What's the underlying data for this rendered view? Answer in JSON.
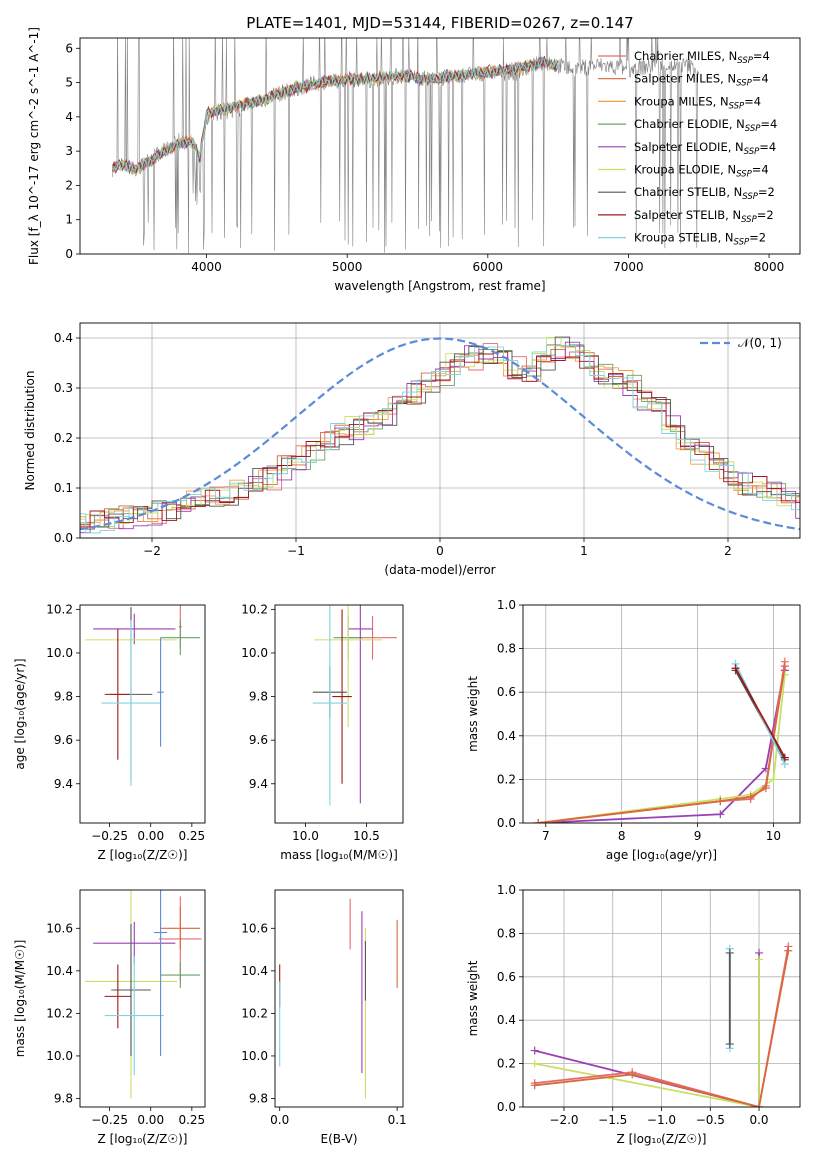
{
  "figure": {
    "title": "PLATE=1401, MJD=53144, FIBERID=0267, z=0.147"
  },
  "series_colors": {
    "Chabrier MILES": "#e46c70",
    "Salpeter MILES": "#d9683a",
    "Kroupa MILES": "#f0a040",
    "Chabrier ELODIE": "#6aa06a",
    "Salpeter ELODIE": "#9a3fb5",
    "Kroupa ELODIE": "#c8e064",
    "Chabrier STELIB": "#555555",
    "Salpeter STELIB": "#a01818",
    "Kroupa STELIB": "#80d4e0"
  },
  "chart_data": [
    {
      "id": "spectrum",
      "type": "line",
      "xlabel": "wavelength [Angstrom, rest frame]",
      "ylabel": "Flux [f_λ 10^-17 erg cm^-2 s^-1 A^-1]",
      "xlim": [
        3100,
        8220
      ],
      "ylim": [
        0,
        6.3
      ],
      "xticks": [
        4000,
        5000,
        6000,
        7000,
        8000
      ],
      "yticks": [
        0,
        1,
        2,
        3,
        4,
        5,
        6
      ],
      "legend": {
        "placement": "upper-right",
        "entries": [
          {
            "label": "Chabrier MILES, N_SSP=4",
            "text": "Chabrier MILES, N",
            "sub": "SSP",
            "tail": "=4",
            "color": "#e46c70"
          },
          {
            "label": "Salpeter MILES, N_SSP=4",
            "text": "Salpeter MILES, N",
            "sub": "SSP",
            "tail": "=4",
            "color": "#d9683a"
          },
          {
            "label": "Kroupa MILES, N_SSP=4",
            "text": "Kroupa MILES, N",
            "sub": "SSP",
            "tail": "=4",
            "color": "#f0a040"
          },
          {
            "label": "Chabrier ELODIE, N_SSP=4",
            "text": "Chabrier ELODIE, N",
            "sub": "SSP",
            "tail": "=4",
            "color": "#6aa06a"
          },
          {
            "label": "Salpeter ELODIE, N_SSP=4",
            "text": "Salpeter ELODIE, N",
            "sub": "SSP",
            "tail": "=4",
            "color": "#9a3fb5"
          },
          {
            "label": "Kroupa ELODIE, N_SSP=4",
            "text": "Kroupa ELODIE, N",
            "sub": "SSP",
            "tail": "=4",
            "color": "#c8e064"
          },
          {
            "label": "Chabrier STELIB, N_SSP=2",
            "text": "Chabrier STELIB, N",
            "sub": "SSP",
            "tail": "=2",
            "color": "#555555"
          },
          {
            "label": "Salpeter STELIB, N_SSP=2",
            "text": "Salpeter STELIB, N",
            "sub": "SSP",
            "tail": "=2",
            "color": "#a01818"
          },
          {
            "label": "Kroupa STELIB, N_SSP=2",
            "text": "Kroupa STELIB, N",
            "sub": "SSP",
            "tail": "=2",
            "color": "#80d4e0"
          }
        ]
      },
      "data_color": "#808080",
      "data_x": [
        3330,
        3400,
        3500,
        3600,
        3700,
        3800,
        3900,
        3950,
        4000,
        4200,
        4400,
        4600,
        4800,
        5000,
        5200,
        5400,
        5600,
        5800,
        6000,
        6200,
        6400,
        6600,
        6800,
        7000,
        7200,
        7400,
        7500
      ],
      "data_y": [
        2.5,
        2.6,
        2.4,
        2.8,
        3.0,
        3.3,
        3.2,
        2.6,
        4.0,
        4.2,
        4.5,
        4.8,
        5.0,
        5.1,
        5.1,
        5.2,
        5.1,
        5.2,
        5.3,
        5.3,
        5.6,
        5.4,
        5.5,
        5.4,
        5.5,
        5.5,
        5.4
      ],
      "model_color": "#80d4e0",
      "model_x": [
        3330,
        3400,
        3500,
        3600,
        3700,
        3800,
        3900,
        3950,
        4000,
        4200,
        4400,
        4600,
        4800,
        5000,
        5200,
        5400,
        5600,
        5800,
        6000,
        6200,
        6400,
        6500
      ],
      "model_y": [
        2.5,
        2.6,
        2.5,
        2.7,
        3.0,
        3.2,
        3.3,
        2.8,
        4.1,
        4.3,
        4.5,
        4.8,
        5.0,
        5.1,
        5.1,
        5.2,
        5.1,
        5.2,
        5.3,
        5.4,
        5.6,
        5.5
      ]
    },
    {
      "id": "residuals",
      "type": "line",
      "xlabel": "(data-model)/error",
      "ylabel": "Normed distribution",
      "xlim": [
        -2.5,
        2.5
      ],
      "ylim": [
        0,
        0.43
      ],
      "xticks": [
        -2,
        -1,
        0,
        1,
        2
      ],
      "yticks": [
        0.0,
        0.1,
        0.2,
        0.3,
        0.4
      ],
      "grid": true,
      "legend": {
        "placement": "upper-right",
        "entries": [
          {
            "label": "𝒩(0, 1)",
            "color": "#5b8bd9",
            "style": "dashed"
          }
        ]
      },
      "hist_edges_start": -2.5,
      "hist_bin_width": 0.1,
      "hist_values": [
        0.025,
        0.03,
        0.035,
        0.04,
        0.045,
        0.05,
        0.05,
        0.06,
        0.07,
        0.085,
        0.09,
        0.1,
        0.115,
        0.12,
        0.14,
        0.16,
        0.17,
        0.19,
        0.21,
        0.22,
        0.23,
        0.25,
        0.27,
        0.29,
        0.31,
        0.33,
        0.35,
        0.36,
        0.37,
        0.36,
        0.34,
        0.33,
        0.36,
        0.38,
        0.37,
        0.36,
        0.33,
        0.32,
        0.31,
        0.28,
        0.26,
        0.22,
        0.2,
        0.17,
        0.15,
        0.13,
        0.11,
        0.1,
        0.09,
        0.07,
        0.06,
        0.05,
        0.045,
        0.04,
        0.035,
        0.03,
        0.025
      ],
      "hist_colors": [
        "#e46c70",
        "#d9683a",
        "#f0a040",
        "#6aa06a",
        "#9a3fb5",
        "#c8e064",
        "#555555",
        "#a01818",
        "#80d4e0"
      ]
    },
    {
      "id": "age-Z",
      "type": "scatter",
      "xlabel": "Z [log₁₀(Z/Z☉)]",
      "ylabel": "age  [log₁₀(age/yr)]",
      "xlim": [
        -0.43,
        0.33
      ],
      "ylim": [
        9.22,
        10.22
      ],
      "xticks": [
        -0.25,
        0.0,
        0.25
      ],
      "xticklabels": [
        "−0.25",
        "0.00",
        "0.25"
      ],
      "yticks": [
        9.4,
        9.6,
        9.8,
        10.0,
        10.2
      ],
      "points": [
        {
          "x": 0.18,
          "y": 10.12,
          "xerr": 0.01,
          "yerr": 0.1,
          "color": "#e46c70"
        },
        {
          "x": 0.18,
          "y": 10.07,
          "xerr": 0.12,
          "yerr": 0.08,
          "color": "#6aa06a"
        },
        {
          "x": -0.1,
          "y": 10.11,
          "xerr": 0.25,
          "yerr": 0.07,
          "color": "#9a3fb5"
        },
        {
          "x": -0.12,
          "y": 10.06,
          "xerr": 0.28,
          "yerr": 0.06,
          "color": "#c8e064"
        },
        {
          "x": -0.12,
          "y": 9.81,
          "xerr": 0.13,
          "yerr": 0.4,
          "color": "#555555"
        },
        {
          "x": -0.2,
          "y": 9.81,
          "xerr": 0.08,
          "yerr": 0.3,
          "color": "#a01818"
        },
        {
          "x": -0.12,
          "y": 9.77,
          "xerr": 0.18,
          "yerr": 0.38,
          "color": "#80d4e0"
        },
        {
          "x": 0.06,
          "y": 9.82,
          "xerr": 0.02,
          "yerr": 0.25,
          "color": "#5b8bd9"
        }
      ]
    },
    {
      "id": "age-mass",
      "type": "scatter",
      "xlabel": "mass [log₁₀(M/M☉)]",
      "xlim": [
        9.75,
        10.8
      ],
      "ylim": [
        9.22,
        10.22
      ],
      "xticks": [
        10.0,
        10.5
      ],
      "yticks": [
        9.4,
        9.6,
        9.8,
        10.0,
        10.2
      ],
      "points": [
        {
          "x": 10.55,
          "y": 10.07,
          "xerr": 0.2,
          "yerr": 0.1,
          "color": "#e46c70"
        },
        {
          "x": 10.35,
          "y": 10.07,
          "xerr": 0.12,
          "yerr": 0.1,
          "color": "#6aa06a"
        },
        {
          "x": 10.45,
          "y": 10.11,
          "xerr": 0.1,
          "yerr": 0.8,
          "color": "#9a3fb5"
        },
        {
          "x": 10.35,
          "y": 10.06,
          "xerr": 0.28,
          "yerr": 0.4,
          "color": "#c8e064"
        },
        {
          "x": 10.2,
          "y": 9.82,
          "xerr": 0.14,
          "yerr": 0.12,
          "color": "#555555"
        },
        {
          "x": 10.3,
          "y": 9.8,
          "xerr": 0.08,
          "yerr": 0.4,
          "color": "#a01818"
        },
        {
          "x": 10.2,
          "y": 9.77,
          "xerr": 0.14,
          "yerr": 0.47,
          "color": "#80d4e0"
        }
      ]
    },
    {
      "id": "weight-age",
      "type": "line",
      "xlabel": "age  [log₁₀(age/yr)]",
      "ylabel": "mass weight",
      "xlim": [
        6.7,
        10.35
      ],
      "ylim": [
        0,
        1.0
      ],
      "xticks": [
        7,
        8,
        9,
        10
      ],
      "yticks": [
        0.0,
        0.2,
        0.4,
        0.6,
        0.8,
        1.0
      ],
      "grid": true,
      "series": [
        {
          "color": "#9a3fb5",
          "x": [
            6.9,
            9.3,
            9.9,
            10.15,
            10.15
          ],
          "y": [
            0.0,
            0.04,
            0.25,
            0.72,
            0.7
          ]
        },
        {
          "color": "#c8e064",
          "x": [
            6.9,
            9.3,
            9.7,
            10.0,
            10.15
          ],
          "y": [
            0.0,
            0.11,
            0.13,
            0.2,
            0.68
          ]
        },
        {
          "color": "#e46c70",
          "x": [
            6.9,
            9.3,
            9.7,
            9.9,
            10.15
          ],
          "y": [
            0.0,
            0.1,
            0.11,
            0.17,
            0.74
          ]
        },
        {
          "color": "#d9683a",
          "x": [
            6.9,
            9.3,
            9.7,
            9.9,
            10.15
          ],
          "y": [
            0.0,
            0.1,
            0.12,
            0.16,
            0.72
          ]
        },
        {
          "color": "#555555",
          "x": [
            9.5,
            10.15
          ],
          "y": [
            0.7,
            0.29
          ]
        },
        {
          "color": "#80d4e0",
          "x": [
            9.5,
            10.15
          ],
          "y": [
            0.73,
            0.27
          ]
        },
        {
          "color": "#a01818",
          "x": [
            9.5,
            10.15
          ],
          "y": [
            0.71,
            0.3
          ]
        }
      ]
    },
    {
      "id": "mass-Z",
      "type": "scatter",
      "xlabel": "Z [log₁₀(Z/Z☉)]",
      "ylabel": "mass [log₁₀(M/M☉)]",
      "xlim": [
        -0.43,
        0.33
      ],
      "ylim": [
        9.76,
        10.78
      ],
      "xticks": [
        -0.25,
        0.0,
        0.25
      ],
      "xticklabels": [
        "−0.25",
        "0.00",
        "0.25"
      ],
      "yticks": [
        9.8,
        10.0,
        10.2,
        10.4,
        10.6
      ],
      "points": [
        {
          "x": 0.18,
          "y": 10.55,
          "xerr": 0.13,
          "yerr": 0.2,
          "color": "#e46c70"
        },
        {
          "x": 0.18,
          "y": 10.6,
          "xerr": 0.12,
          "yerr": 0.1,
          "color": "#d9683a"
        },
        {
          "x": 0.18,
          "y": 10.38,
          "xerr": 0.12,
          "yerr": 0.06,
          "color": "#6aa06a"
        },
        {
          "x": -0.1,
          "y": 10.53,
          "xerr": 0.25,
          "yerr": 0.1,
          "color": "#9a3fb5"
        },
        {
          "x": -0.12,
          "y": 10.35,
          "xerr": 0.28,
          "yerr": 0.55,
          "color": "#c8e064"
        },
        {
          "x": -0.12,
          "y": 10.31,
          "xerr": 0.12,
          "yerr": 0.31,
          "color": "#555555"
        },
        {
          "x": -0.2,
          "y": 10.28,
          "xerr": 0.08,
          "yerr": 0.15,
          "color": "#a01818"
        },
        {
          "x": -0.1,
          "y": 10.19,
          "xerr": 0.18,
          "yerr": 0.28,
          "color": "#80d4e0"
        },
        {
          "x": 0.06,
          "y": 10.58,
          "xerr": 0.04,
          "yerr": 0.58,
          "color": "#5b8bd9"
        }
      ]
    },
    {
      "id": "mass-EBV",
      "type": "scatter",
      "xlabel": "E(B-V)",
      "xlim": [
        -0.004,
        0.105
      ],
      "ylim": [
        9.76,
        10.78
      ],
      "xticks": [
        0.0,
        0.1
      ],
      "xticklabels": [
        "0.0",
        "0.1"
      ],
      "yticks": [
        9.8,
        10.0,
        10.2,
        10.4,
        10.6
      ],
      "points": [
        {
          "x": 0.0,
          "y": 10.33,
          "xerr": 0,
          "yerr": 0.1,
          "color": "#a01818"
        },
        {
          "x": 0.0,
          "y": 10.15,
          "xerr": 0,
          "yerr": 0.2,
          "color": "#80d4e0"
        },
        {
          "x": 0.06,
          "y": 10.62,
          "xerr": 0,
          "yerr": 0.12,
          "color": "#e46c70"
        },
        {
          "x": 0.07,
          "y": 10.3,
          "xerr": 0,
          "yerr": 0.38,
          "color": "#9a3fb5"
        },
        {
          "x": 0.073,
          "y": 10.2,
          "xerr": 0,
          "yerr": 0.4,
          "color": "#c8e064"
        },
        {
          "x": 0.073,
          "y": 10.4,
          "xerr": 0,
          "yerr": 0.14,
          "color": "#555555"
        },
        {
          "x": 0.1,
          "y": 10.48,
          "xerr": 0,
          "yerr": 0.16,
          "color": "#d9683a"
        }
      ]
    },
    {
      "id": "weight-Z",
      "type": "line",
      "xlabel": "Z [log₁₀(Z/Z☉)]",
      "ylabel": "mass weight",
      "xlim": [
        -2.42,
        0.42
      ],
      "ylim": [
        0,
        1.0
      ],
      "xticks": [
        -2.0,
        -1.5,
        -1.0,
        -0.5,
        0.0
      ],
      "xticklabels": [
        "−2.0",
        "−1.5",
        "−1.0",
        "−0.5",
        "0.0"
      ],
      "yticks": [
        0.0,
        0.2,
        0.4,
        0.6,
        0.8,
        1.0
      ],
      "grid": true,
      "series": [
        {
          "color": "#9a3fb5",
          "x": [
            -2.3,
            0.0,
            0.0
          ],
          "y": [
            0.26,
            0.0,
            0.71
          ]
        },
        {
          "color": "#c8e064",
          "x": [
            -2.3,
            0.0,
            0.0
          ],
          "y": [
            0.2,
            0.0,
            0.68
          ]
        },
        {
          "color": "#e46c70",
          "x": [
            -2.3,
            -1.3,
            0.0,
            0.3
          ],
          "y": [
            0.11,
            0.16,
            0.0,
            0.74
          ]
        },
        {
          "color": "#d9683a",
          "x": [
            -2.3,
            -1.3,
            0.0,
            0.3
          ],
          "y": [
            0.1,
            0.15,
            0.0,
            0.72
          ]
        },
        {
          "color": "#80d4e0",
          "x": [
            -0.3,
            -0.3
          ],
          "y": [
            0.27,
            0.73
          ]
        },
        {
          "color": "#555555",
          "x": [
            -0.3,
            -0.3
          ],
          "y": [
            0.29,
            0.71
          ]
        }
      ]
    }
  ]
}
